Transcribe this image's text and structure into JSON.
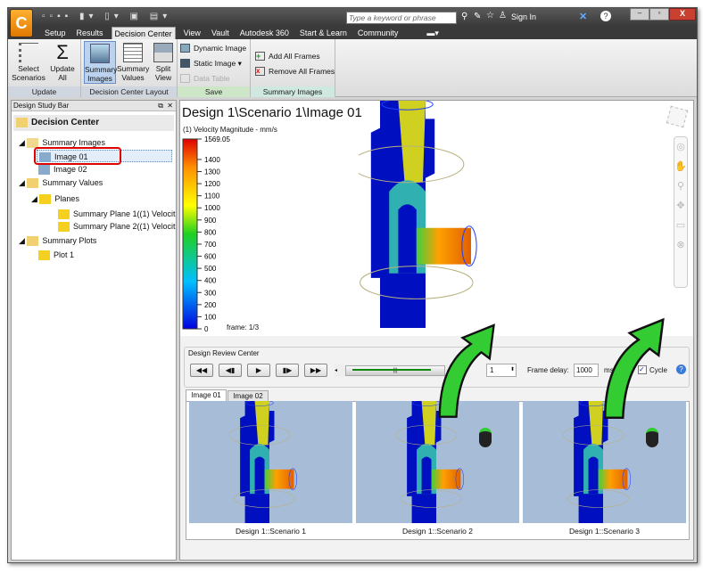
{
  "titlebar": {
    "search_placeholder": "Type a keyword or phrase",
    "sign_in": "Sign In"
  },
  "ribbon_tabs": [
    {
      "label": "Setup"
    },
    {
      "label": "Results"
    },
    {
      "label": "Decision Center",
      "active": true
    },
    {
      "label": "View"
    },
    {
      "label": "Vault"
    },
    {
      "label": "Autodesk 360"
    },
    {
      "label": "Start & Learn"
    },
    {
      "label": "Community"
    }
  ],
  "ribbon": {
    "update": {
      "label": "Update",
      "select": "Select\nScenarios",
      "update_all": "Update\nAll"
    },
    "layout": {
      "label": "Decision Center Layout",
      "summary_images": "Summary\nImages",
      "summary_values": "Summary\nValues",
      "split_view": "Split\nView"
    },
    "save": {
      "label": "Save",
      "dynamic_image": "Dynamic Image",
      "static_image": "Static Image",
      "data_table": "Data Table"
    },
    "summary_images": {
      "label": "Summary Images",
      "add_all": "Add All Frames",
      "remove_all": "Remove All Frames"
    }
  },
  "study_bar": {
    "title": "Design Study Bar",
    "root": "Decision Center",
    "items": [
      {
        "label": "Summary Images"
      },
      {
        "label": "Image 01"
      },
      {
        "label": "Image 02"
      },
      {
        "label": "Summary Values"
      },
      {
        "label": "Planes"
      },
      {
        "label": "Summary Plane 1((1) Velocit..."
      },
      {
        "label": "Summary Plane 2((1) Velocit..."
      },
      {
        "label": "Summary Plots"
      },
      {
        "label": "Plot 1"
      }
    ]
  },
  "view": {
    "title": "Design 1\\Scenario 1\\Image 01",
    "legend_title": "(1) Velocity Magnitude - mm/s",
    "legend_max": "1569.05",
    "legend_ticks": [
      "1400",
      "1300",
      "1200",
      "1100",
      "1000",
      "900",
      "800",
      "700",
      "600",
      "500",
      "400",
      "300",
      "200",
      "100",
      "0"
    ],
    "frame": "frame: 1/3"
  },
  "review": {
    "title": "Design Review Center",
    "frame_value": "1",
    "frame_delay_label": "Frame delay:",
    "frame_delay": "1000",
    "ms": "ms",
    "cycle": "Cycle",
    "cycle_checked": true
  },
  "image_tabs": [
    {
      "label": "Image 01",
      "active": true
    },
    {
      "label": "Image 02"
    }
  ],
  "thumbnails": [
    {
      "caption": "Design 1::Scenario 1"
    },
    {
      "caption": "Design 1::Scenario 2"
    },
    {
      "caption": "Design 1::Scenario 3"
    }
  ],
  "colors": {
    "accent": "#f0a000",
    "selection_highlight": "#e00000",
    "arrow": "#33cc33"
  }
}
